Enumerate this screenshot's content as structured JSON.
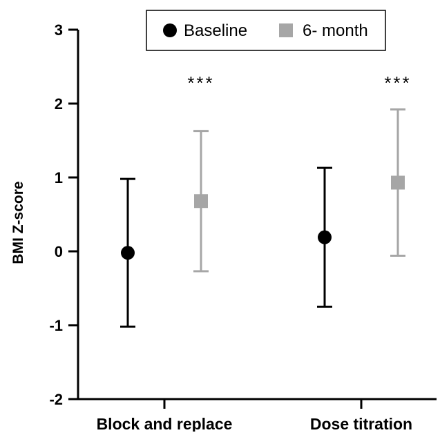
{
  "chart_data": {
    "type": "scatter",
    "ylabel": "BMI Z-score",
    "xlabel": "",
    "title": "",
    "ylim": [
      -2,
      3
    ],
    "yticks": [
      3,
      2,
      1,
      0,
      -1,
      -2
    ],
    "categories": [
      "Block and replace",
      "Dose titration"
    ],
    "series": [
      {
        "name": "Baseline",
        "marker": "circle",
        "color": "#000000",
        "values": [
          -0.02,
          0.19
        ],
        "error_low": [
          -1.02,
          -0.75
        ],
        "error_high": [
          0.98,
          1.13
        ]
      },
      {
        "name": "6- month",
        "marker": "square",
        "color": "#a6a6a6",
        "values": [
          0.68,
          0.93
        ],
        "error_low": [
          -0.27,
          -0.06
        ],
        "error_high": [
          1.63,
          1.92
        ]
      }
    ],
    "annotations": [
      "***",
      "***"
    ],
    "legend_position": "top-center",
    "grid": false
  }
}
